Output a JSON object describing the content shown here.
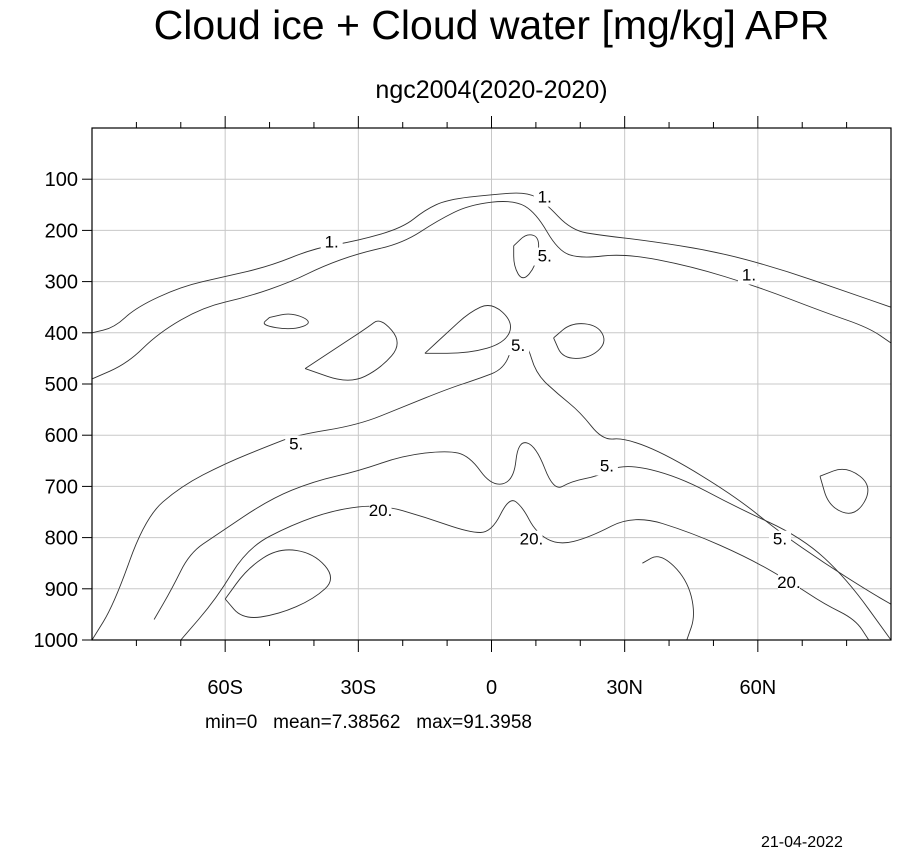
{
  "title": "Cloud ice + Cloud water [mg/kg] APR",
  "subtitle": "ngc2004(2020-2020)",
  "stats": {
    "min_label": "min=0",
    "mean_label": "mean=7.38562",
    "max_label": "max=91.3958"
  },
  "date": "21-04-2022",
  "chart_data": {
    "type": "contour",
    "x_axis": {
      "range": [
        -90,
        90
      ],
      "tick_values": [
        -60,
        -30,
        0,
        30,
        60
      ],
      "tick_labels": [
        "60S",
        "30S",
        "0",
        "30N",
        "60N"
      ]
    },
    "y_axis": {
      "range": [
        0,
        1000
      ],
      "inverted": true,
      "tick_values": [
        100,
        200,
        300,
        400,
        500,
        600,
        700,
        800,
        900,
        1000
      ],
      "tick_labels": [
        "100",
        "200",
        "300",
        "400",
        "500",
        "600",
        "700",
        "800",
        "900",
        "1000"
      ]
    },
    "grid": true,
    "contour_labels": [
      {
        "text": "1.",
        "lat": -36,
        "p": 228
      },
      {
        "text": "1.",
        "lat": 12,
        "p": 140
      },
      {
        "text": "1.",
        "lat": 58,
        "p": 292
      },
      {
        "text": "5.",
        "lat": 12,
        "p": 255
      },
      {
        "text": "5.",
        "lat": 6,
        "p": 430
      },
      {
        "text": "5.",
        "lat": -44,
        "p": 622
      },
      {
        "text": "5.",
        "lat": 26,
        "p": 665
      },
      {
        "text": "5.",
        "lat": 65,
        "p": 808
      },
      {
        "text": "20.",
        "lat": -25,
        "p": 752
      },
      {
        "text": "20.",
        "lat": 9,
        "p": 808
      },
      {
        "text": "20.",
        "lat": 67,
        "p": 893
      }
    ],
    "contour_lines": [
      {
        "level": 1,
        "points": [
          [
            -90,
            400
          ],
          [
            -85,
            390
          ],
          [
            -80,
            350
          ],
          [
            -70,
            310
          ],
          [
            -60,
            290
          ],
          [
            -50,
            270
          ],
          [
            -40,
            235
          ],
          [
            -30,
            220
          ],
          [
            -20,
            195
          ],
          [
            -15,
            160
          ],
          [
            -10,
            140
          ],
          [
            0,
            130
          ],
          [
            8,
            125
          ],
          [
            12,
            145
          ],
          [
            18,
            200
          ],
          [
            25,
            210
          ],
          [
            35,
            220
          ],
          [
            50,
            240
          ],
          [
            65,
            275
          ],
          [
            80,
            320
          ],
          [
            90,
            350
          ]
        ]
      },
      {
        "level": 1,
        "points": [
          [
            -90,
            490
          ],
          [
            -82,
            460
          ],
          [
            -75,
            400
          ],
          [
            -65,
            350
          ],
          [
            -55,
            330
          ],
          [
            -45,
            300
          ],
          [
            -38,
            270
          ],
          [
            -30,
            245
          ],
          [
            -20,
            225
          ],
          [
            -12,
            180
          ],
          [
            -5,
            150
          ],
          [
            5,
            140
          ],
          [
            10,
            165
          ],
          [
            15,
            240
          ],
          [
            20,
            255
          ],
          [
            30,
            245
          ],
          [
            45,
            270
          ],
          [
            60,
            310
          ],
          [
            75,
            360
          ],
          [
            85,
            390
          ],
          [
            90,
            420
          ]
        ]
      },
      {
        "level": 5,
        "points": [
          [
            -90,
            1000
          ],
          [
            -85,
            930
          ],
          [
            -78,
            760
          ],
          [
            -70,
            700
          ],
          [
            -60,
            655
          ],
          [
            -50,
            620
          ],
          [
            -44,
            600
          ],
          [
            -30,
            580
          ],
          [
            -20,
            545
          ],
          [
            -10,
            510
          ],
          [
            -3,
            490
          ],
          [
            3,
            470
          ],
          [
            5,
            415
          ],
          [
            8,
            420
          ],
          [
            10,
            480
          ],
          [
            15,
            520
          ],
          [
            20,
            555
          ],
          [
            25,
            610
          ],
          [
            30,
            605
          ],
          [
            40,
            640
          ],
          [
            55,
            720
          ],
          [
            65,
            790
          ],
          [
            75,
            850
          ],
          [
            85,
            905
          ],
          [
            90,
            930
          ]
        ]
      },
      {
        "level": 5,
        "points": [
          [
            -76,
            960
          ],
          [
            -72,
            900
          ],
          [
            -68,
            830
          ],
          [
            -62,
            795
          ],
          [
            -50,
            725
          ],
          [
            -40,
            690
          ],
          [
            -30,
            670
          ],
          [
            -20,
            640
          ],
          [
            -10,
            630
          ],
          [
            -5,
            640
          ],
          [
            0,
            700
          ],
          [
            5,
            690
          ],
          [
            6,
            610
          ],
          [
            10,
            620
          ],
          [
            14,
            710
          ],
          [
            18,
            690
          ],
          [
            24,
            680
          ],
          [
            30,
            655
          ],
          [
            42,
            680
          ],
          [
            55,
            740
          ],
          [
            70,
            800
          ],
          [
            80,
            880
          ],
          [
            90,
            1000
          ]
        ]
      },
      {
        "level": 20,
        "points": [
          [
            -70,
            1000
          ],
          [
            -62,
            920
          ],
          [
            -55,
            820
          ],
          [
            -45,
            775
          ],
          [
            -35,
            745
          ],
          [
            -25,
            735
          ],
          [
            -15,
            760
          ],
          [
            -5,
            790
          ],
          [
            0,
            790
          ],
          [
            4,
            720
          ],
          [
            7,
            740
          ],
          [
            10,
            790
          ],
          [
            15,
            815
          ],
          [
            22,
            800
          ],
          [
            32,
            755
          ],
          [
            45,
            790
          ],
          [
            58,
            840
          ],
          [
            68,
            890
          ],
          [
            75,
            930
          ],
          [
            82,
            960
          ],
          [
            85,
            1000
          ]
        ]
      },
      {
        "level": 20,
        "points": [
          [
            -60,
            920
          ],
          [
            -55,
            860
          ],
          [
            -48,
            820
          ],
          [
            -40,
            830
          ],
          [
            -35,
            880
          ],
          [
            -40,
            920
          ],
          [
            -48,
            950
          ],
          [
            -56,
            960
          ],
          [
            -60,
            920
          ]
        ]
      },
      {
        "level": 5,
        "points": [
          [
            -15,
            440
          ],
          [
            -10,
            400
          ],
          [
            -5,
            360
          ],
          [
            0,
            340
          ],
          [
            5,
            380
          ],
          [
            3,
            420
          ],
          [
            -5,
            440
          ],
          [
            -15,
            440
          ]
        ]
      },
      {
        "level": 5,
        "points": [
          [
            -42,
            470
          ],
          [
            -35,
            430
          ],
          [
            -28,
            390
          ],
          [
            -25,
            370
          ],
          [
            -20,
            420
          ],
          [
            -25,
            470
          ],
          [
            -32,
            500
          ],
          [
            -42,
            470
          ]
        ]
      },
      {
        "level": 5,
        "points": [
          [
            14,
            410
          ],
          [
            18,
            380
          ],
          [
            24,
            385
          ],
          [
            26,
            420
          ],
          [
            22,
            450
          ],
          [
            16,
            450
          ],
          [
            14,
            410
          ]
        ]
      },
      {
        "level": 5,
        "points": [
          [
            5,
            230
          ],
          [
            8,
            205
          ],
          [
            11,
            215
          ],
          [
            10,
            270
          ],
          [
            7,
            300
          ],
          [
            5,
            270
          ],
          [
            5,
            230
          ]
        ]
      },
      {
        "level": 5,
        "points": [
          [
            -50,
            370
          ],
          [
            -45,
            360
          ],
          [
            -40,
            380
          ],
          [
            -45,
            395
          ],
          [
            -52,
            385
          ],
          [
            -50,
            370
          ]
        ]
      },
      {
        "level": 5,
        "points": [
          [
            74,
            680
          ],
          [
            80,
            660
          ],
          [
            86,
            700
          ],
          [
            82,
            760
          ],
          [
            76,
            740
          ],
          [
            74,
            680
          ]
        ]
      },
      {
        "level": 5,
        "points": [
          [
            34,
            850
          ],
          [
            38,
            830
          ],
          [
            44,
            880
          ],
          [
            46,
            950
          ],
          [
            44,
            1000
          ]
        ]
      }
    ]
  }
}
